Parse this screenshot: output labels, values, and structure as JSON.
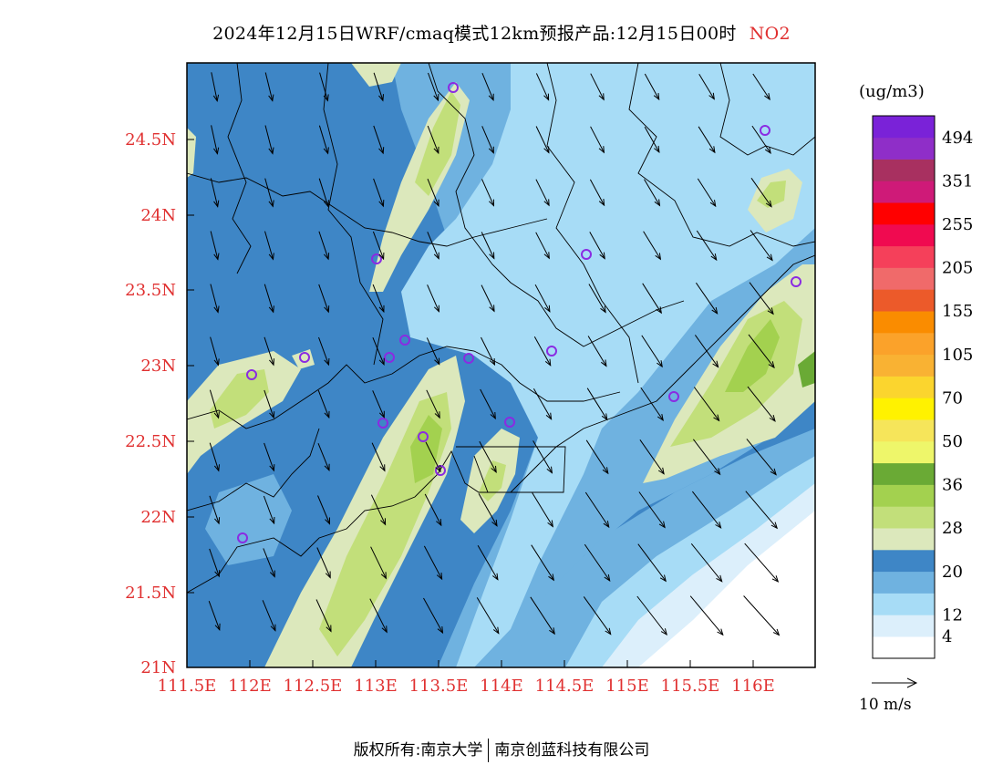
{
  "title": {
    "main": "2024年12月15日WRF/cmaq模式12km预报产品:12月15日00时",
    "species": "NO2"
  },
  "colorbar": {
    "unit": "(ug/m3)",
    "bins": [
      {
        "color": "#ffffff",
        "label": "4"
      },
      {
        "color": "#dceffb",
        "label": "12"
      },
      {
        "color": "#a7dcf6",
        "label": ""
      },
      {
        "color": "#6fb2e0",
        "label": "20"
      },
      {
        "color": "#3e86c6",
        "label": ""
      },
      {
        "color": "#dce8bc",
        "label": "28"
      },
      {
        "color": "#c2df7a",
        "label": ""
      },
      {
        "color": "#a3d14f",
        "label": "36"
      },
      {
        "color": "#6aaa35",
        "label": ""
      },
      {
        "color": "#eef66a",
        "label": "50"
      },
      {
        "color": "#f6e55a",
        "label": ""
      },
      {
        "color": "#fff200",
        "label": "70"
      },
      {
        "color": "#fbd52e",
        "label": ""
      },
      {
        "color": "#f9b233",
        "label": "105"
      },
      {
        "color": "#fba22a",
        "label": ""
      },
      {
        "color": "#fa8c00",
        "label": "155"
      },
      {
        "color": "#ec5a2a",
        "label": ""
      },
      {
        "color": "#f06a6a",
        "label": "205"
      },
      {
        "color": "#f5405a",
        "label": ""
      },
      {
        "color": "#f00a50",
        "label": "255"
      },
      {
        "color": "#ff0000",
        "label": ""
      },
      {
        "color": "#cf1a78",
        "label": "351"
      },
      {
        "color": "#a83060",
        "label": ""
      },
      {
        "color": "#8f2ec8",
        "label": "494"
      },
      {
        "color": "#7a22d8",
        "label": ""
      }
    ]
  },
  "map": {
    "lon_ticks": [
      "111.5E",
      "112E",
      "112.5E",
      "113E",
      "113.5E",
      "114E",
      "114.5E",
      "115E",
      "115.5E",
      "116E"
    ],
    "lat_ticks": [
      "21N",
      "21.5N",
      "22N",
      "22.5N",
      "23N",
      "23.5N",
      "24N",
      "24.5N"
    ],
    "axis_label_color": "#e03030"
  },
  "wind_reference": {
    "label": "10 m/s"
  },
  "footer": {
    "left": "版权所有:南京大学",
    "right": "南京创蓝科技有限公司"
  }
}
